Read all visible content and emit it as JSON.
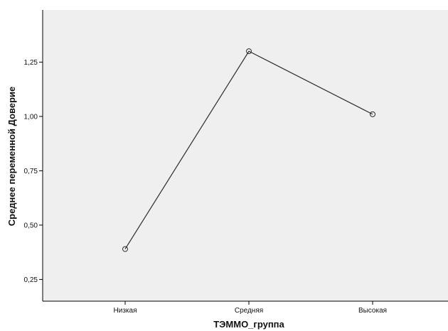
{
  "chart_data": {
    "type": "line",
    "xlabel": "ТЭММО_группа",
    "ylabel": "Среднее переменной Доверие",
    "categories": [
      "Низкая",
      "Средняя",
      "Высокая"
    ],
    "series": [
      {
        "values": [
          0.39,
          1.3,
          1.01
        ]
      }
    ],
    "ylim": [
      0.15,
      1.49
    ],
    "yticks": [
      0.25,
      0.5,
      0.75,
      1.0,
      1.25
    ],
    "ytick_labels": [
      "0,25",
      "0,50",
      "0,75",
      "1,00",
      "1,25"
    ],
    "grid": false,
    "legend": "none",
    "marker": "open-circle",
    "colors": {
      "plot_background": "#efefef",
      "line": "#2b2b2b",
      "axis": "#000000"
    }
  }
}
